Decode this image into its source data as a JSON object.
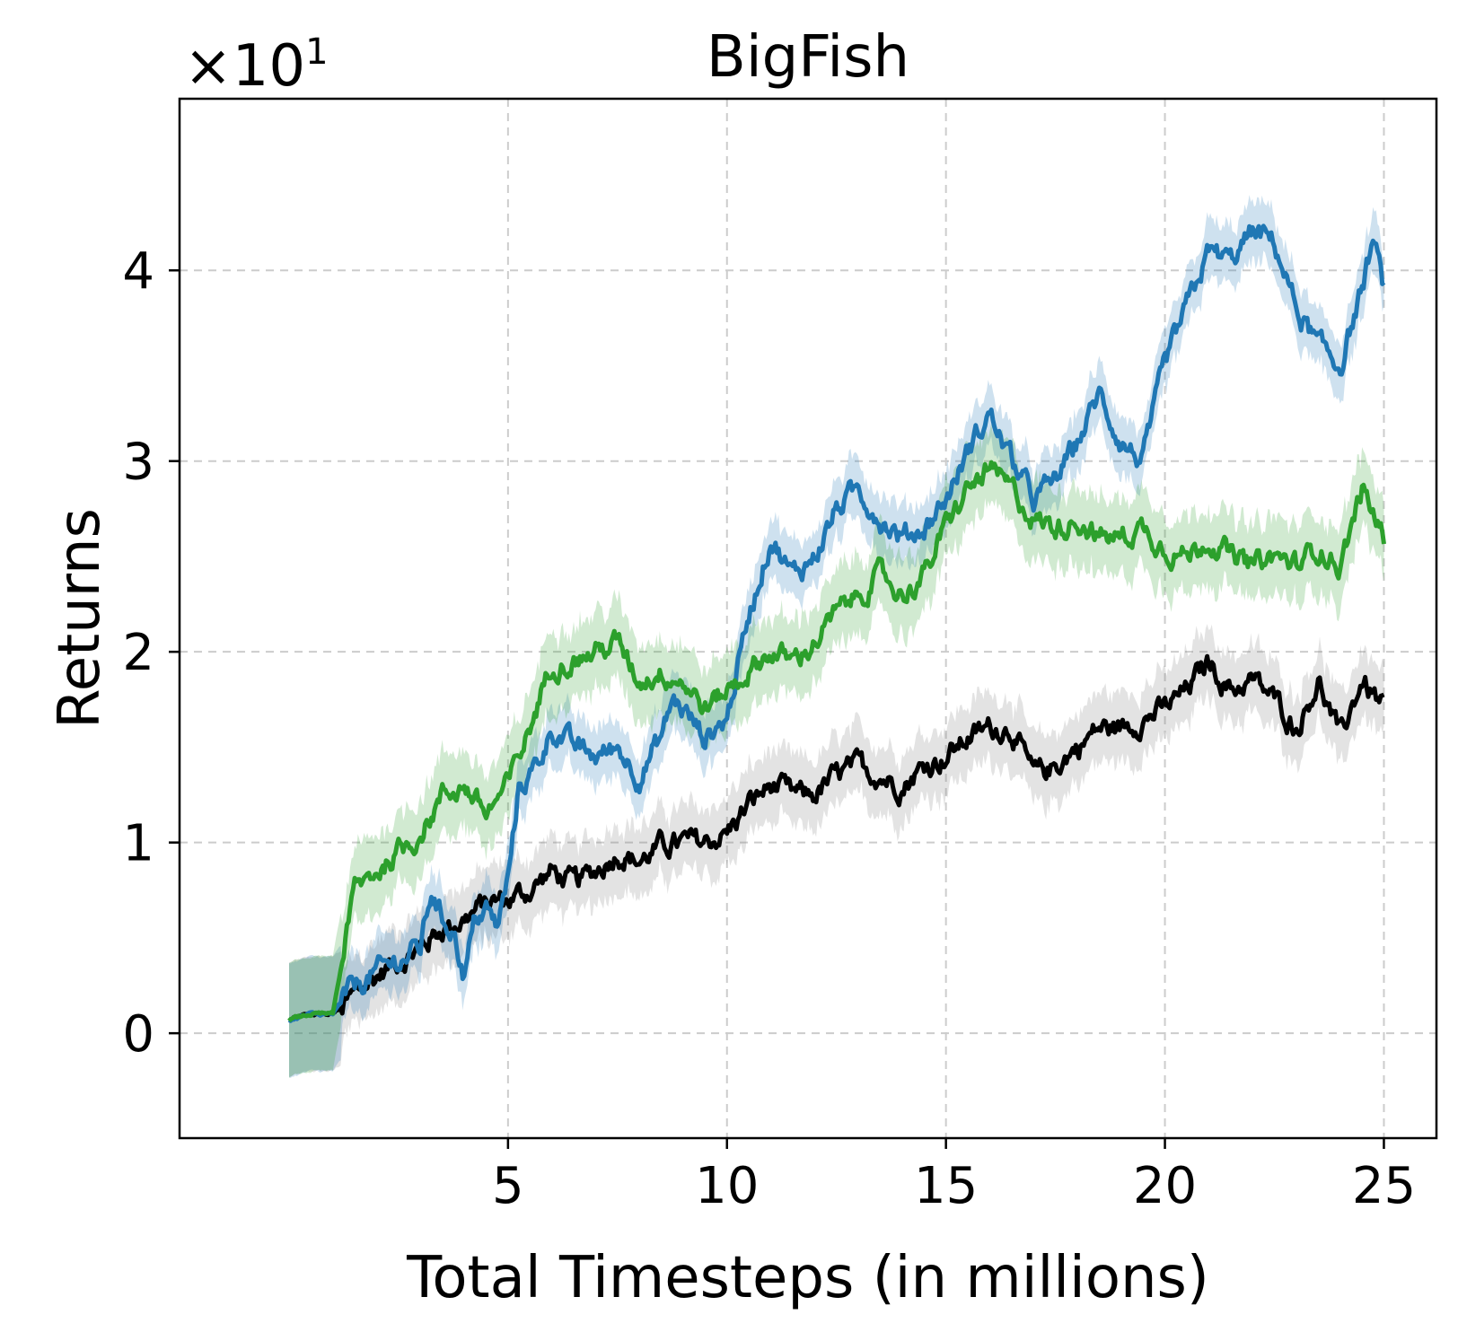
{
  "chart_data": {
    "type": "line",
    "title": "BigFish",
    "xlabel": "Total Timesteps (in millions)",
    "ylabel": "Returns",
    "y_scale_multiplier": "×10¹",
    "y_scale_base": "×10",
    "y_scale_exp": "1",
    "xlim": [
      -2.5,
      26.2
    ],
    "ylim": [
      -0.55,
      4.9
    ],
    "xticks": [
      5,
      10,
      15,
      20,
      25
    ],
    "xtick_labels": [
      "5",
      "10",
      "15",
      "20",
      "25"
    ],
    "yticks": [
      0,
      1,
      2,
      3,
      4
    ],
    "ytick_labels": [
      "0",
      "1",
      "2",
      "3",
      "4"
    ],
    "grid": true,
    "legend": "none",
    "series": [
      {
        "color": "#000000",
        "band_color": "#7f7f7f",
        "band": 0.18,
        "x": [
          0,
          0.5,
          1,
          1.5,
          2,
          2.5,
          3,
          3.5,
          4,
          4.5,
          5,
          5.5,
          6,
          6.5,
          7,
          7.5,
          8,
          8.5,
          9,
          9.5,
          10,
          10.5,
          11,
          11.5,
          12,
          12.5,
          13,
          13.5,
          14,
          14.5,
          15,
          15.5,
          16,
          16.5,
          17,
          17.5,
          18,
          18.5,
          19,
          19.5,
          20,
          20.5,
          21,
          21.5,
          22,
          22.5,
          23,
          23.5,
          24,
          24.5,
          25
        ],
        "y": [
          0.07,
          0.1,
          0.1,
          0.2,
          0.3,
          0.38,
          0.45,
          0.55,
          0.6,
          0.68,
          0.7,
          0.75,
          0.85,
          0.78,
          0.85,
          0.95,
          0.9,
          0.98,
          1.0,
          1.0,
          1.05,
          1.2,
          1.3,
          1.25,
          1.25,
          1.35,
          1.4,
          1.35,
          1.3,
          1.4,
          1.45,
          1.55,
          1.6,
          1.6,
          1.35,
          1.4,
          1.5,
          1.6,
          1.6,
          1.65,
          1.7,
          1.8,
          1.95,
          1.8,
          1.85,
          1.75,
          1.6,
          1.85,
          1.55,
          1.85,
          1.7
        ]
      },
      {
        "color": "#1f77b4",
        "band_color": "#1f77b4",
        "band": 0.15,
        "x": [
          0,
          0.5,
          1,
          1.5,
          2,
          2.5,
          3,
          3.25,
          3.5,
          3.75,
          4,
          4.25,
          4.5,
          4.75,
          5,
          5.25,
          5.5,
          5.75,
          6,
          6.5,
          7,
          7.5,
          8,
          8.5,
          8.75,
          9,
          9.5,
          10,
          10.5,
          11,
          11.5,
          12,
          12.5,
          13,
          13.5,
          14,
          14.5,
          15,
          15.5,
          16,
          16.5,
          17,
          17.5,
          18,
          18.5,
          19,
          19.5,
          20,
          20.5,
          21,
          21.5,
          22,
          22.5,
          23,
          23.5,
          24,
          24.5,
          24.75,
          25
        ],
        "y": [
          0.07,
          0.1,
          0.1,
          0.25,
          0.32,
          0.38,
          0.45,
          0.75,
          0.6,
          0.55,
          0.3,
          0.6,
          0.65,
          0.55,
          0.8,
          1.3,
          1.35,
          1.45,
          1.6,
          1.5,
          1.45,
          1.5,
          1.35,
          1.55,
          1.75,
          1.7,
          1.55,
          1.65,
          2.2,
          2.6,
          2.4,
          2.5,
          2.75,
          2.85,
          2.7,
          2.6,
          2.65,
          2.8,
          3.05,
          3.25,
          3.0,
          2.8,
          2.9,
          3.1,
          3.35,
          3.1,
          3.0,
          3.5,
          3.8,
          4.1,
          4.05,
          4.2,
          4.15,
          3.8,
          3.6,
          3.5,
          3.9,
          4.15,
          3.9
        ]
      },
      {
        "color": "#2ca02c",
        "band_color": "#2ca02c",
        "band": 0.2,
        "x": [
          0,
          0.5,
          1,
          1.5,
          2,
          2.5,
          3,
          3.5,
          4,
          4.5,
          5,
          5.5,
          6,
          6.5,
          7,
          7.5,
          8,
          8.5,
          9,
          9.5,
          10,
          10.5,
          11,
          11.5,
          12,
          12.5,
          13,
          13.5,
          14,
          14.5,
          15,
          15.5,
          16,
          16.5,
          17,
          17.5,
          18,
          18.5,
          19,
          19.5,
          20,
          20.5,
          21,
          21.5,
          22,
          22.5,
          23,
          23.5,
          24,
          24.5,
          25
        ],
        "y": [
          0.07,
          0.1,
          0.1,
          0.75,
          0.85,
          0.95,
          1.05,
          1.25,
          1.3,
          1.15,
          1.3,
          1.6,
          1.95,
          1.95,
          2.0,
          2.05,
          1.85,
          1.9,
          1.85,
          1.7,
          1.8,
          1.9,
          2.0,
          1.95,
          2.05,
          2.2,
          2.3,
          2.4,
          2.3,
          2.4,
          2.65,
          2.85,
          2.95,
          2.85,
          2.7,
          2.65,
          2.7,
          2.6,
          2.6,
          2.65,
          2.55,
          2.5,
          2.6,
          2.5,
          2.45,
          2.5,
          2.45,
          2.55,
          2.45,
          2.85,
          2.6
        ]
      }
    ]
  }
}
